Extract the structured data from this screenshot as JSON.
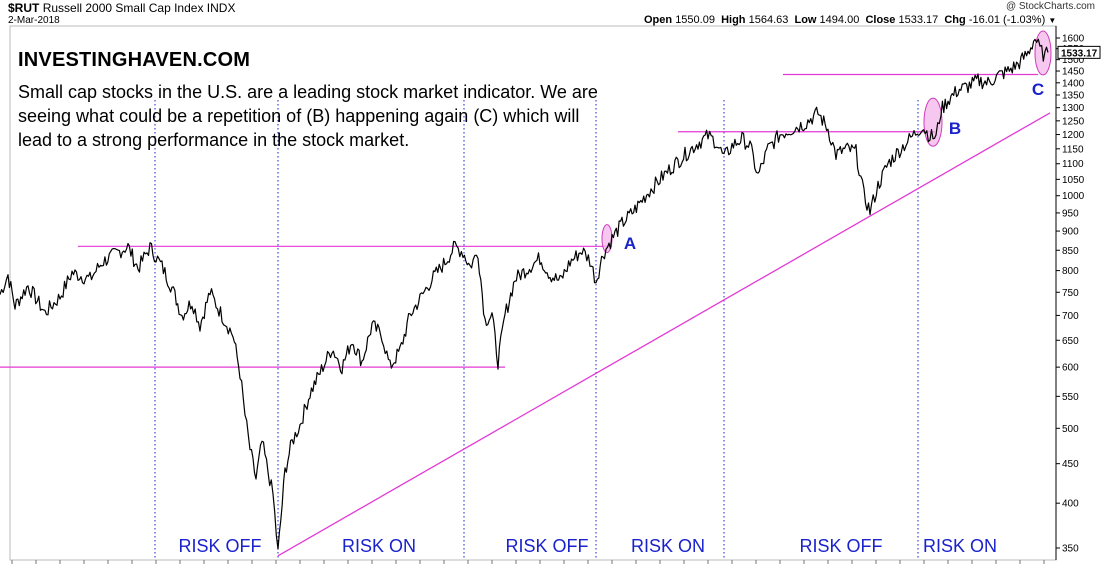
{
  "header": {
    "symbol": "$RUT",
    "name": "Russell 2000 Small Cap Index",
    "exchange": "INDX",
    "date": "2-Mar-2018",
    "watermark": "@ StockCharts.com",
    "open_label": "Open",
    "open": "1550.09",
    "high_label": "High",
    "high": "1564.63",
    "low_label": "Low",
    "low": "1494.00",
    "close_label": "Close",
    "close": "1533.17",
    "chg_label": "Chg",
    "chg": "-16.01 (-1.03%)",
    "chg_arrow": "▼"
  },
  "brand": "INVESTINGHAVEN.COM",
  "note": "Small cap stocks in the U.S. are a leading stock market indicator. We are seeing what could be a repetition of (B) happening again (C) which will lead to a strong performance in the stock market.",
  "chart_data": {
    "type": "line",
    "ylabel": "",
    "y_scale": "log",
    "ylim": [
      330,
      1680
    ],
    "y_ticks": [
      350,
      400,
      450,
      500,
      550,
      600,
      650,
      700,
      750,
      800,
      850,
      900,
      950,
      1000,
      1050,
      1100,
      1150,
      1200,
      1250,
      1300,
      1350,
      1400,
      1450,
      1500,
      1550,
      1600
    ],
    "last_value_label": "1533.17",
    "grid": false,
    "series": [
      {
        "values": [
          {
            "x": 0,
            "y": 745
          },
          {
            "x": 8,
            "y": 790
          },
          {
            "x": 15,
            "y": 720
          },
          {
            "x": 28,
            "y": 765
          },
          {
            "x": 45,
            "y": 705
          },
          {
            "x": 60,
            "y": 740
          },
          {
            "x": 72,
            "y": 795
          },
          {
            "x": 90,
            "y": 780
          },
          {
            "x": 102,
            "y": 820
          },
          {
            "x": 118,
            "y": 845
          },
          {
            "x": 128,
            "y": 860
          },
          {
            "x": 138,
            "y": 805
          },
          {
            "x": 150,
            "y": 858
          },
          {
            "x": 162,
            "y": 810
          },
          {
            "x": 172,
            "y": 760
          },
          {
            "x": 182,
            "y": 700
          },
          {
            "x": 192,
            "y": 730
          },
          {
            "x": 200,
            "y": 680
          },
          {
            "x": 210,
            "y": 750
          },
          {
            "x": 222,
            "y": 700
          },
          {
            "x": 233,
            "y": 660
          },
          {
            "x": 240,
            "y": 590
          },
          {
            "x": 245,
            "y": 520
          },
          {
            "x": 250,
            "y": 470
          },
          {
            "x": 256,
            "y": 430
          },
          {
            "x": 262,
            "y": 480
          },
          {
            "x": 268,
            "y": 440
          },
          {
            "x": 273,
            "y": 410
          },
          {
            "x": 278,
            "y": 345
          },
          {
            "x": 285,
            "y": 440
          },
          {
            "x": 292,
            "y": 480
          },
          {
            "x": 300,
            "y": 505
          },
          {
            "x": 310,
            "y": 555
          },
          {
            "x": 320,
            "y": 590
          },
          {
            "x": 332,
            "y": 635
          },
          {
            "x": 342,
            "y": 600
          },
          {
            "x": 352,
            "y": 650
          },
          {
            "x": 362,
            "y": 610
          },
          {
            "x": 372,
            "y": 680
          },
          {
            "x": 382,
            "y": 660
          },
          {
            "x": 390,
            "y": 600
          },
          {
            "x": 400,
            "y": 630
          },
          {
            "x": 410,
            "y": 700
          },
          {
            "x": 420,
            "y": 735
          },
          {
            "x": 432,
            "y": 780
          },
          {
            "x": 445,
            "y": 820
          },
          {
            "x": 455,
            "y": 860
          },
          {
            "x": 463,
            "y": 845
          },
          {
            "x": 470,
            "y": 810
          },
          {
            "x": 478,
            "y": 845
          },
          {
            "x": 485,
            "y": 690
          },
          {
            "x": 492,
            "y": 700
          },
          {
            "x": 498,
            "y": 610
          },
          {
            "x": 505,
            "y": 700
          },
          {
            "x": 515,
            "y": 780
          },
          {
            "x": 525,
            "y": 800
          },
          {
            "x": 540,
            "y": 830
          },
          {
            "x": 550,
            "y": 790
          },
          {
            "x": 560,
            "y": 775
          },
          {
            "x": 570,
            "y": 820
          },
          {
            "x": 582,
            "y": 850
          },
          {
            "x": 590,
            "y": 825
          },
          {
            "x": 596,
            "y": 775
          },
          {
            "x": 603,
            "y": 840
          },
          {
            "x": 612,
            "y": 880
          },
          {
            "x": 622,
            "y": 920
          },
          {
            "x": 635,
            "y": 960
          },
          {
            "x": 648,
            "y": 1010
          },
          {
            "x": 660,
            "y": 1050
          },
          {
            "x": 672,
            "y": 1090
          },
          {
            "x": 685,
            "y": 1130
          },
          {
            "x": 698,
            "y": 1170
          },
          {
            "x": 708,
            "y": 1195
          },
          {
            "x": 716,
            "y": 1175
          },
          {
            "x": 724,
            "y": 1120
          },
          {
            "x": 732,
            "y": 1160
          },
          {
            "x": 742,
            "y": 1185
          },
          {
            "x": 750,
            "y": 1160
          },
          {
            "x": 758,
            "y": 1060
          },
          {
            "x": 768,
            "y": 1150
          },
          {
            "x": 780,
            "y": 1200
          },
          {
            "x": 792,
            "y": 1220
          },
          {
            "x": 805,
            "y": 1240
          },
          {
            "x": 818,
            "y": 1280
          },
          {
            "x": 828,
            "y": 1220
          },
          {
            "x": 836,
            "y": 1130
          },
          {
            "x": 846,
            "y": 1150
          },
          {
            "x": 856,
            "y": 1140
          },
          {
            "x": 864,
            "y": 1000
          },
          {
            "x": 870,
            "y": 955
          },
          {
            "x": 878,
            "y": 1030
          },
          {
            "x": 888,
            "y": 1100
          },
          {
            "x": 898,
            "y": 1140
          },
          {
            "x": 906,
            "y": 1170
          },
          {
            "x": 914,
            "y": 1200
          },
          {
            "x": 922,
            "y": 1230
          },
          {
            "x": 930,
            "y": 1195
          },
          {
            "x": 936,
            "y": 1190
          },
          {
            "x": 941,
            "y": 1290
          },
          {
            "x": 948,
            "y": 1330
          },
          {
            "x": 958,
            "y": 1370
          },
          {
            "x": 968,
            "y": 1385
          },
          {
            "x": 978,
            "y": 1410
          },
          {
            "x": 988,
            "y": 1400
          },
          {
            "x": 998,
            "y": 1430
          },
          {
            "x": 1008,
            "y": 1450
          },
          {
            "x": 1018,
            "y": 1480
          },
          {
            "x": 1028,
            "y": 1530
          },
          {
            "x": 1035,
            "y": 1600
          },
          {
            "x": 1040,
            "y": 1545
          },
          {
            "x": 1045,
            "y": 1515
          },
          {
            "x": 1048,
            "y": 1533
          }
        ]
      }
    ],
    "horizontal_levels": [
      860,
      600,
      1210,
      1435
    ],
    "regimes": [
      "RISK OFF",
      "RISK ON",
      "RISK OFF",
      "RISK ON",
      "RISK OFF",
      "RISK ON"
    ],
    "annotations": [
      "A",
      "B",
      "C"
    ]
  },
  "colors": {
    "price": "#000000",
    "trendline": "#e33ad6",
    "highlight": "#f3b6e9",
    "highlight_stroke": "#d03cbe",
    "regime_text": "#1a22cc",
    "divider": "#1a22cc",
    "last_tag_bg": "#ffffff"
  }
}
